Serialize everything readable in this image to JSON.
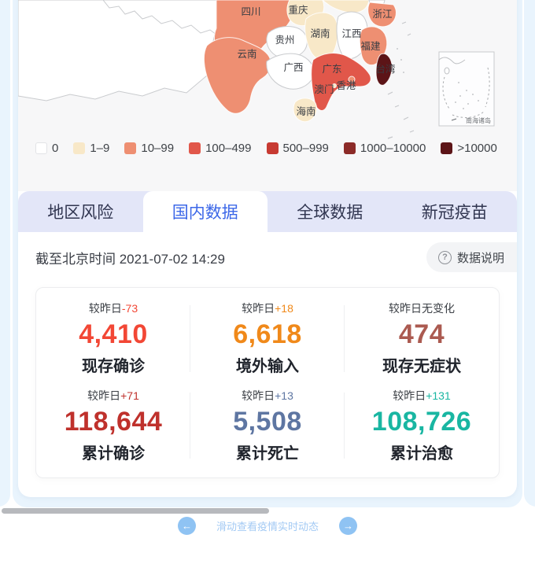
{
  "map": {
    "level_colors": {
      "0": "#FFFFFF",
      "1–9": "#F8E8C8",
      "10–99": "#EE8F72",
      "100–499": "#E1574A",
      "500–999": "#C73A32",
      "1000–10000": "#8C2B28",
      ">10000": "#5C1417"
    },
    "legend": [
      {
        "label": "0",
        "level": "0"
      },
      {
        "label": "1–9",
        "level": "1–9"
      },
      {
        "label": "10–99",
        "level": "10–99"
      },
      {
        "label": "100–499",
        "level": "100–499"
      },
      {
        "label": "500–999",
        "level": "500–999"
      },
      {
        "label": "1000–10000",
        "level": "1000–10000"
      },
      {
        "label": ">10000",
        "level": ">10000"
      }
    ],
    "provinces": {
      "west": {
        "label": "",
        "level": "0"
      },
      "sichuan": {
        "label": "四川",
        "level": "10–99"
      },
      "chongqing": {
        "label": "重庆",
        "level": "1–9"
      },
      "hubei_part": {
        "label": "",
        "level": "1–9"
      },
      "anhui_part": {
        "label": "",
        "level": "0"
      },
      "guizhou": {
        "label": "贵州",
        "level": "0"
      },
      "hunan": {
        "label": "湖南",
        "level": "1–9"
      },
      "jiangxi": {
        "label": "江西",
        "level": "0"
      },
      "zhejiang": {
        "label": "浙江",
        "level": "10–99"
      },
      "fujian": {
        "label": "福建",
        "level": "10–99"
      },
      "yunnan": {
        "label": "云南",
        "level": "10–99"
      },
      "guangxi": {
        "label": "广西",
        "level": "0"
      },
      "guangdong": {
        "label": "广东",
        "level": "100–499"
      },
      "hongkong": {
        "label": "香港",
        "level": "10–99"
      },
      "macau": {
        "label": "澳门",
        "level": "1–9"
      },
      "hainan": {
        "label": "海南",
        "level": "1–9"
      },
      "taiwan": {
        "label": "台湾",
        "level": ">10000"
      }
    },
    "inset_label": "南海诸岛",
    "taiwan_label_color": "#C9554B"
  },
  "tabs": [
    {
      "id": "region-risk",
      "label": "地区风险",
      "active": false
    },
    {
      "id": "domestic-data",
      "label": "国内数据",
      "active": true
    },
    {
      "id": "global-data",
      "label": "全球数据",
      "active": false
    },
    {
      "id": "vaccine",
      "label": "新冠疫苗",
      "active": false
    }
  ],
  "meta": {
    "as_of": "截至北京时间 2021-07-02 14:29",
    "data_note_label": "数据说明"
  },
  "stats": [
    {
      "prefix": "较昨日",
      "delta": "-73",
      "value": "4,410",
      "label": "现存确诊",
      "color": "#F24735"
    },
    {
      "prefix": "较昨日",
      "delta": "+18",
      "value": "6,618",
      "label": "境外输入",
      "color": "#F0891A"
    },
    {
      "prefix": "较昨日无变化",
      "delta": "",
      "value": "474",
      "label": "现存无症状",
      "color": "#AB5A50"
    },
    {
      "prefix": "较昨日",
      "delta": "+71",
      "value": "118,644",
      "label": "累计确诊",
      "color": "#BF312C"
    },
    {
      "prefix": "较昨日",
      "delta": "+13",
      "value": "5,508",
      "label": "累计死亡",
      "color": "#5E76A2"
    },
    {
      "prefix": "较昨日",
      "delta": "+131",
      "value": "108,726",
      "label": "累计治愈",
      "color": "#19B6A2"
    }
  ],
  "footer": {
    "swipe_hint": "滑动查看疫情实时动态"
  }
}
